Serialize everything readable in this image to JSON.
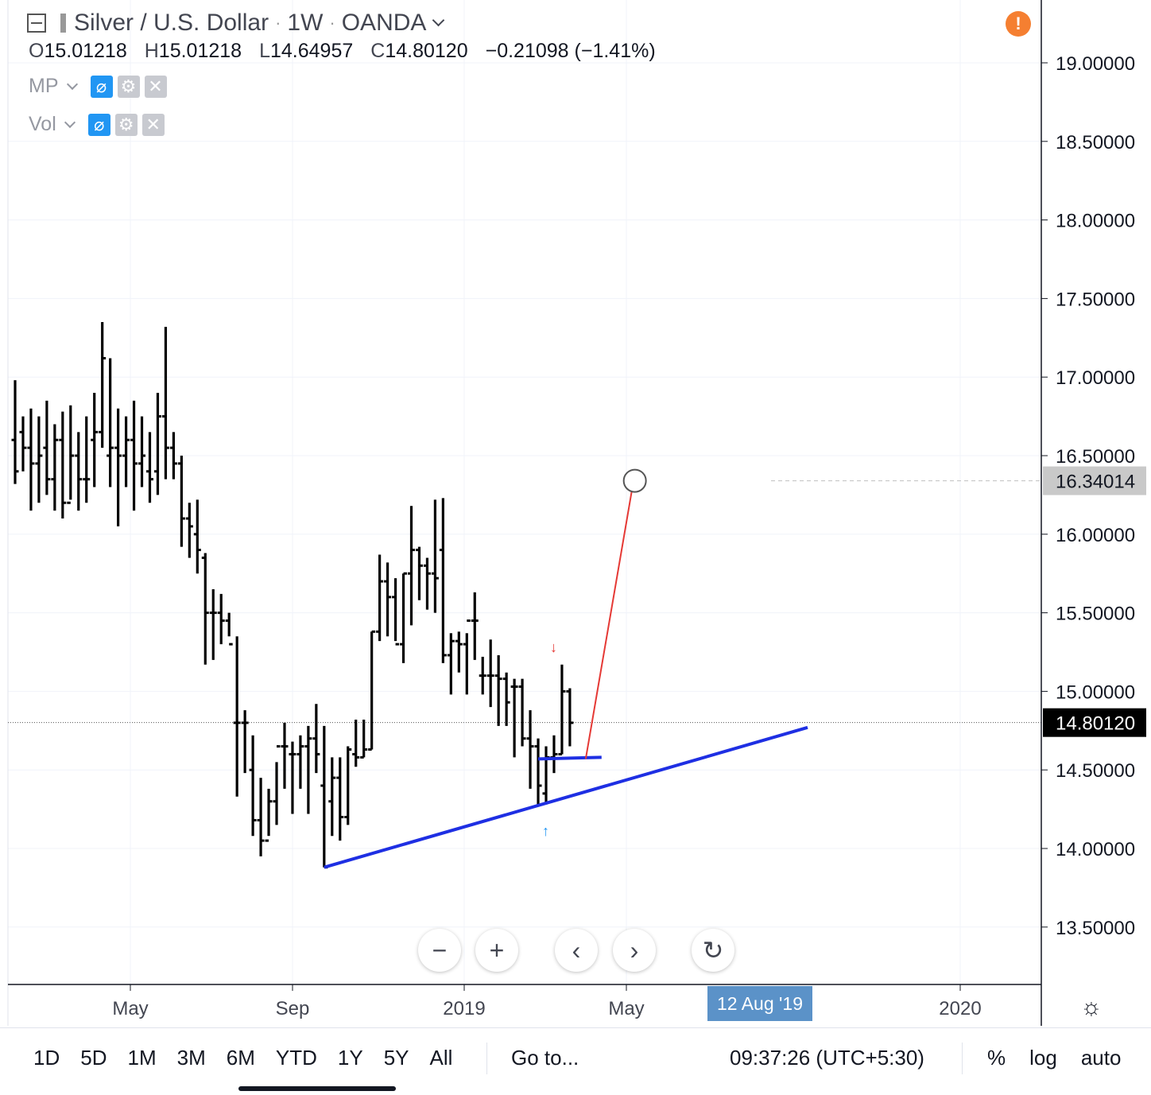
{
  "header": {
    "symbol": "Silver / U.S. Dollar",
    "interval": "1W",
    "exchange": "OANDA",
    "ohlc": {
      "o_label": "O",
      "o": "15.01218",
      "h_label": "H",
      "h": "15.01218",
      "l_label": "L",
      "l": "14.64957",
      "c_label": "C",
      "c": "14.80120",
      "change": "−0.21098 (−1.41%)"
    },
    "indicators": [
      {
        "name": "MP"
      },
      {
        "name": "Vol"
      }
    ]
  },
  "chart_data": {
    "type": "ohlc-bar",
    "y_axis": {
      "ticks": [
        "19.00000",
        "18.50000",
        "18.00000",
        "17.50000",
        "17.00000",
        "16.50000",
        "16.00000",
        "15.50000",
        "15.00000",
        "14.50000",
        "14.00000",
        "13.50000"
      ],
      "range": [
        13.15,
        19.3
      ]
    },
    "x_axis": {
      "ticks": [
        "May",
        "Sep",
        "2019",
        "May",
        "2020"
      ]
    },
    "last_price": "14.80120",
    "target_price": "16.34014",
    "bars": [
      [
        16.6,
        16.98,
        16.32,
        16.4
      ],
      [
        16.65,
        16.75,
        16.4,
        16.55
      ],
      [
        16.55,
        16.8,
        16.15,
        16.45
      ],
      [
        16.45,
        16.75,
        16.2,
        16.5
      ],
      [
        16.55,
        16.85,
        16.25,
        16.35
      ],
      [
        16.35,
        16.7,
        16.15,
        16.6
      ],
      [
        16.6,
        16.78,
        16.1,
        16.2
      ],
      [
        16.2,
        16.82,
        16.22,
        16.5
      ],
      [
        16.5,
        16.65,
        16.15,
        16.35
      ],
      [
        16.35,
        16.75,
        16.2,
        16.35
      ],
      [
        16.6,
        16.9,
        16.3,
        16.65
      ],
      [
        16.65,
        17.35,
        16.55,
        17.12
      ],
      [
        16.5,
        17.12,
        16.3,
        16.55
      ],
      [
        16.55,
        16.8,
        16.05,
        16.5
      ],
      [
        16.5,
        16.75,
        16.3,
        16.6
      ],
      [
        16.6,
        16.85,
        16.15,
        16.45
      ],
      [
        16.45,
        16.75,
        16.3,
        16.5
      ],
      [
        16.4,
        16.65,
        16.2,
        16.35
      ],
      [
        16.4,
        16.9,
        16.25,
        16.75
      ],
      [
        16.75,
        17.32,
        16.35,
        16.55
      ],
      [
        16.55,
        16.65,
        16.35,
        16.45
      ],
      [
        16.45,
        16.5,
        15.92,
        16.1
      ],
      [
        16.1,
        16.2,
        15.85,
        16.05
      ],
      [
        16.0,
        16.22,
        15.75,
        15.9
      ],
      [
        15.85,
        15.88,
        15.17,
        15.5
      ],
      [
        15.5,
        15.65,
        15.2,
        15.5
      ],
      [
        15.5,
        15.62,
        15.3,
        15.45
      ],
      [
        15.45,
        15.5,
        15.35,
        15.3
      ],
      [
        14.8,
        15.35,
        14.33,
        14.8
      ],
      [
        14.8,
        14.88,
        14.48,
        14.8
      ],
      [
        14.5,
        14.72,
        14.08,
        14.18
      ],
      [
        14.18,
        14.45,
        13.95,
        14.05
      ],
      [
        14.05,
        14.38,
        14.08,
        14.3
      ],
      [
        14.3,
        14.55,
        14.15,
        14.65
      ],
      [
        14.65,
        14.8,
        14.38,
        14.65
      ],
      [
        14.6,
        14.68,
        14.22,
        14.6
      ],
      [
        14.6,
        14.72,
        14.38,
        14.65
      ],
      [
        14.65,
        14.78,
        14.22,
        14.7
      ],
      [
        14.7,
        14.92,
        14.48,
        14.6
      ],
      [
        14.4,
        14.78,
        13.88,
        13.88
      ],
      [
        14.3,
        14.58,
        14.08,
        14.45
      ],
      [
        14.45,
        14.58,
        14.05,
        14.2
      ],
      [
        14.2,
        14.65,
        14.15,
        14.63
      ],
      [
        14.6,
        14.82,
        14.52,
        14.58
      ],
      [
        14.58,
        14.82,
        14.58,
        14.63
      ],
      [
        14.63,
        15.38,
        14.63,
        15.38
      ],
      [
        15.38,
        15.87,
        15.32,
        15.7
      ],
      [
        15.7,
        15.82,
        15.35,
        15.6
      ],
      [
        15.6,
        15.72,
        15.32,
        15.3
      ],
      [
        15.3,
        15.75,
        15.18,
        15.75
      ],
      [
        15.75,
        16.18,
        15.42,
        15.9
      ],
      [
        15.9,
        15.92,
        15.58,
        15.8
      ],
      [
        15.8,
        15.85,
        15.52,
        15.75
      ],
      [
        15.75,
        16.22,
        15.5,
        15.72
      ],
      [
        15.9,
        16.23,
        15.18,
        15.23
      ],
      [
        15.23,
        15.37,
        14.98,
        15.32
      ],
      [
        15.32,
        15.38,
        15.12,
        15.3
      ],
      [
        15.3,
        15.37,
        14.98,
        15.45
      ],
      [
        15.45,
        15.63,
        15.2,
        15.45
      ],
      [
        15.1,
        15.22,
        14.98,
        15.1
      ],
      [
        15.1,
        15.33,
        14.9,
        15.1
      ],
      [
        15.1,
        15.23,
        14.78,
        15.08
      ],
      [
        15.08,
        15.12,
        14.78,
        14.93
      ],
      [
        15.03,
        15.08,
        14.58,
        15.03
      ],
      [
        15.03,
        15.08,
        14.65,
        14.7
      ],
      [
        14.7,
        14.88,
        14.38,
        14.65
      ],
      [
        14.65,
        14.7,
        14.28,
        14.4
      ],
      [
        14.35,
        14.65,
        14.28,
        14.58
      ],
      [
        14.58,
        14.72,
        14.48,
        14.6
      ],
      [
        14.6,
        15.17,
        14.6,
        15.0
      ],
      [
        15.0,
        15.02,
        14.65,
        14.8
      ]
    ],
    "drawings": [
      {
        "type": "trendline",
        "color": "#1e2fe3",
        "from": [
          39,
          13.88
        ],
        "to": [
          100,
          14.77
        ]
      },
      {
        "type": "hline",
        "color": "#1e2fe3",
        "from": [
          66,
          14.57
        ],
        "to": [
          74,
          14.58
        ]
      },
      {
        "type": "arrow",
        "color": "#e53935",
        "from": [
          72,
          14.57
        ],
        "to": [
          78,
          16.33
        ]
      }
    ]
  },
  "nav_buttons": {
    "zoom_out": "−",
    "zoom_in": "+",
    "back": "‹",
    "forward": "›",
    "reset": "↻"
  },
  "crosshair_date": "12 Aug '19",
  "bottom_bar": {
    "ranges": [
      "1D",
      "5D",
      "1M",
      "3M",
      "6M",
      "YTD",
      "1Y",
      "5Y",
      "All"
    ],
    "goto": "Go to...",
    "clock": "09:37:26 (UTC+5:30)",
    "options": [
      "%",
      "log",
      "auto"
    ]
  },
  "colors": {
    "bars": "#000000",
    "trend": "#1e2fe3",
    "projection": "#e53935",
    "alert": "#f57f31",
    "date_badge": "#5b92c8"
  }
}
